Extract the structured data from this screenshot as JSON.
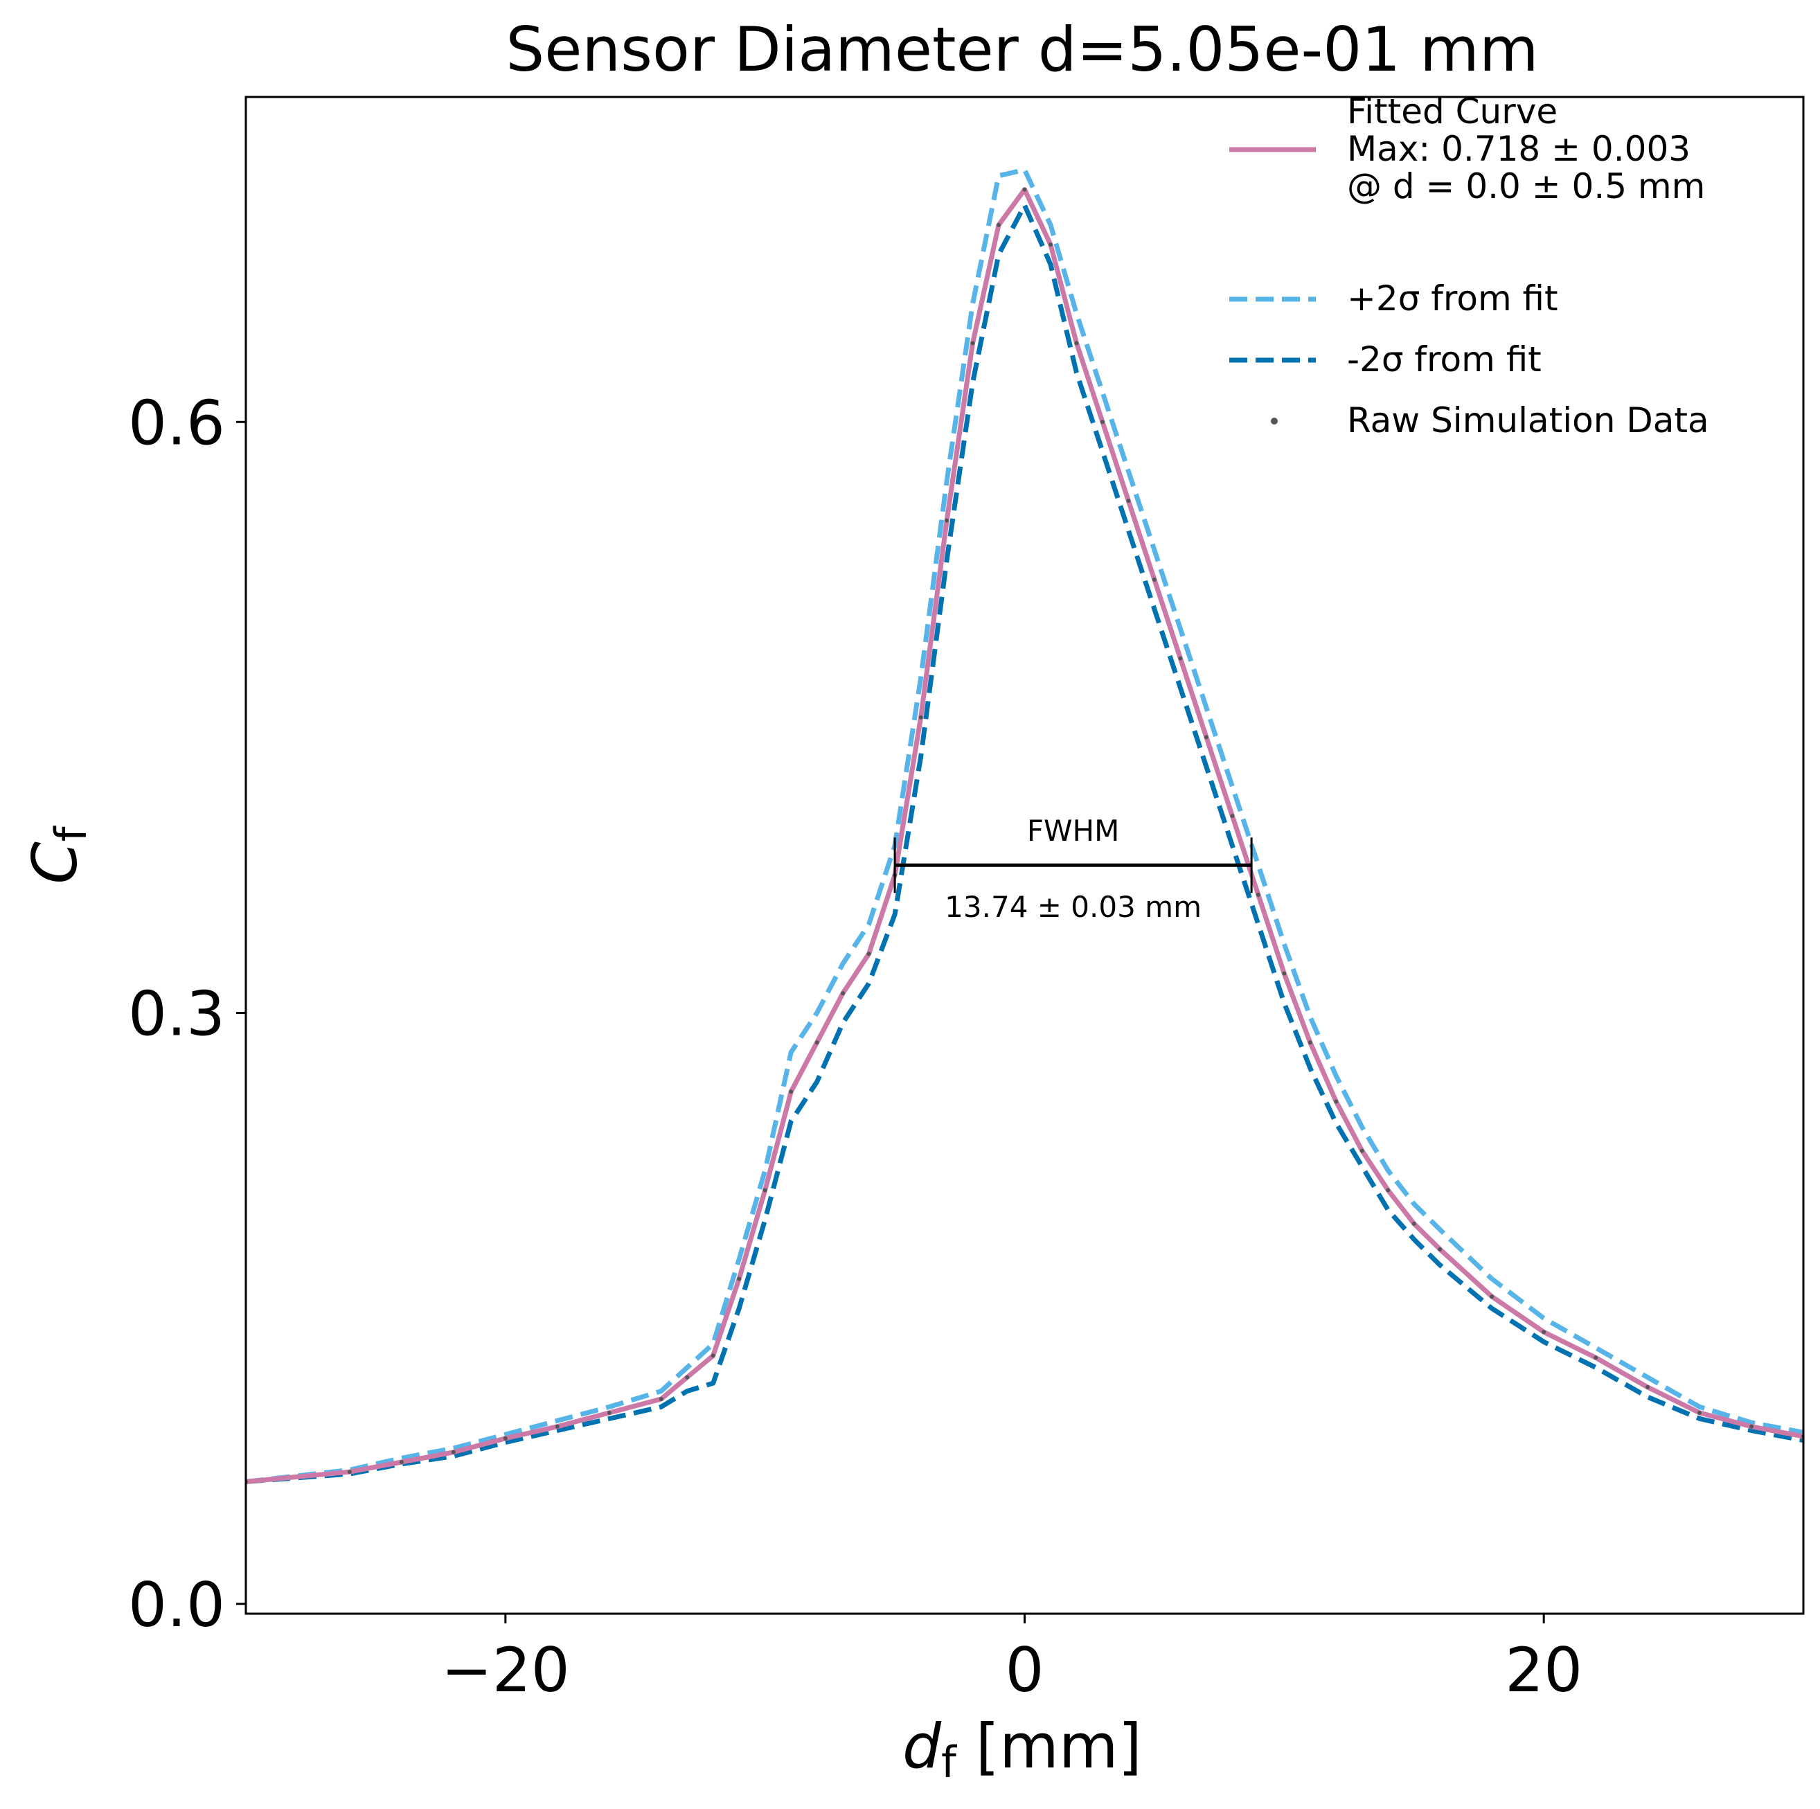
{
  "chart_data": {
    "type": "line",
    "title": "Sensor Diameter d=5.05e-01 mm",
    "xlabel": {
      "main": "d",
      "sub": "f",
      "unit": " [mm]"
    },
    "ylabel": {
      "main": "C",
      "sub": "f"
    },
    "xlim": [
      -30,
      30
    ],
    "ylim": [
      -0.005,
      0.765
    ],
    "xticks": [
      -20,
      0,
      20
    ],
    "xtick_labels": [
      "−20",
      "0",
      "20"
    ],
    "yticks": [
      0.0,
      0.3,
      0.6
    ],
    "ytick_labels": [
      "0.0",
      "0.3",
      "0.6"
    ],
    "grid": false,
    "legend": {
      "placement": "top-right",
      "entries": [
        {
          "lines": [
            "Fitted Curve",
            "Max: 0.718 ± 0.003",
            "@ d = 0.0 ± 0.5 mm"
          ],
          "style": "solid",
          "color": "#cc79a7"
        },
        {
          "lines": [
            "+2σ from fit"
          ],
          "style": "dashed",
          "color": "#56b4e9"
        },
        {
          "lines": [
            "-2σ from fit"
          ],
          "style": "dashed",
          "color": "#0072b2"
        },
        {
          "lines": [
            "Raw Simulation Data"
          ],
          "style": "dot",
          "color": "#555555"
        }
      ]
    },
    "fwhm": {
      "label": "FWHM",
      "value_text": "13.74 ± 0.03 mm",
      "x_start": -5.0,
      "x_end": 8.74,
      "y": 0.375
    },
    "series": [
      {
        "name": "Fitted Curve",
        "color": "#cc79a7",
        "style": "solid",
        "x": [
          -30,
          -26,
          -24,
          -22,
          -20,
          -18,
          -16,
          -14,
          -13,
          -12,
          -11,
          -10,
          -9,
          -8,
          -7,
          -6,
          -5,
          -4,
          -3,
          -2,
          -1,
          0,
          1,
          2,
          3,
          4,
          5,
          6,
          7,
          8,
          9,
          10,
          11,
          12,
          13,
          14,
          15,
          16,
          18,
          20,
          22,
          24,
          26,
          28,
          30
        ],
        "y": [
          0.062,
          0.067,
          0.072,
          0.077,
          0.084,
          0.09,
          0.097,
          0.104,
          0.115,
          0.126,
          0.165,
          0.21,
          0.26,
          0.285,
          0.31,
          0.33,
          0.37,
          0.45,
          0.55,
          0.64,
          0.7,
          0.718,
          0.69,
          0.64,
          0.6,
          0.56,
          0.52,
          0.48,
          0.44,
          0.4,
          0.36,
          0.32,
          0.285,
          0.255,
          0.23,
          0.21,
          0.193,
          0.18,
          0.156,
          0.138,
          0.125,
          0.11,
          0.097,
          0.09,
          0.085
        ]
      },
      {
        "name": "+2σ from fit",
        "color": "#56b4e9",
        "style": "dashed",
        "x": [
          -30,
          -26,
          -24,
          -22,
          -20,
          -18,
          -16,
          -14,
          -13,
          -12,
          -11,
          -10,
          -9,
          -8,
          -7,
          -6,
          -5,
          -4,
          -3,
          -2,
          -1,
          0,
          1,
          2,
          3,
          4,
          5,
          6,
          7,
          8,
          9,
          10,
          11,
          12,
          13,
          14,
          15,
          16,
          18,
          20,
          22,
          24,
          26,
          28,
          30
        ],
        "y": [
          0.062,
          0.068,
          0.074,
          0.079,
          0.086,
          0.093,
          0.1,
          0.108,
          0.12,
          0.132,
          0.175,
          0.22,
          0.28,
          0.3,
          0.325,
          0.345,
          0.385,
          0.47,
          0.57,
          0.66,
          0.725,
          0.728,
          0.7,
          0.655,
          0.615,
          0.575,
          0.535,
          0.495,
          0.455,
          0.415,
          0.375,
          0.335,
          0.298,
          0.268,
          0.242,
          0.22,
          0.203,
          0.19,
          0.165,
          0.145,
          0.13,
          0.115,
          0.1,
          0.092,
          0.087
        ]
      },
      {
        "name": "-2σ from fit",
        "color": "#0072b2",
        "style": "dashed",
        "x": [
          -30,
          -26,
          -24,
          -22,
          -20,
          -18,
          -16,
          -14,
          -13,
          -12,
          -11,
          -10,
          -9,
          -8,
          -7,
          -6,
          -5,
          -4,
          -3,
          -2,
          -1,
          0,
          1,
          2,
          3,
          4,
          5,
          6,
          7,
          8,
          9,
          10,
          11,
          12,
          13,
          14,
          15,
          16,
          18,
          20,
          22,
          24,
          26,
          28,
          30
        ],
        "y": [
          0.062,
          0.066,
          0.071,
          0.075,
          0.082,
          0.088,
          0.094,
          0.1,
          0.108,
          0.112,
          0.15,
          0.195,
          0.245,
          0.265,
          0.295,
          0.315,
          0.35,
          0.43,
          0.53,
          0.62,
          0.685,
          0.71,
          0.68,
          0.625,
          0.585,
          0.545,
          0.505,
          0.465,
          0.425,
          0.385,
          0.345,
          0.305,
          0.272,
          0.244,
          0.222,
          0.2,
          0.185,
          0.172,
          0.15,
          0.133,
          0.12,
          0.105,
          0.094,
          0.088,
          0.083
        ]
      }
    ]
  }
}
